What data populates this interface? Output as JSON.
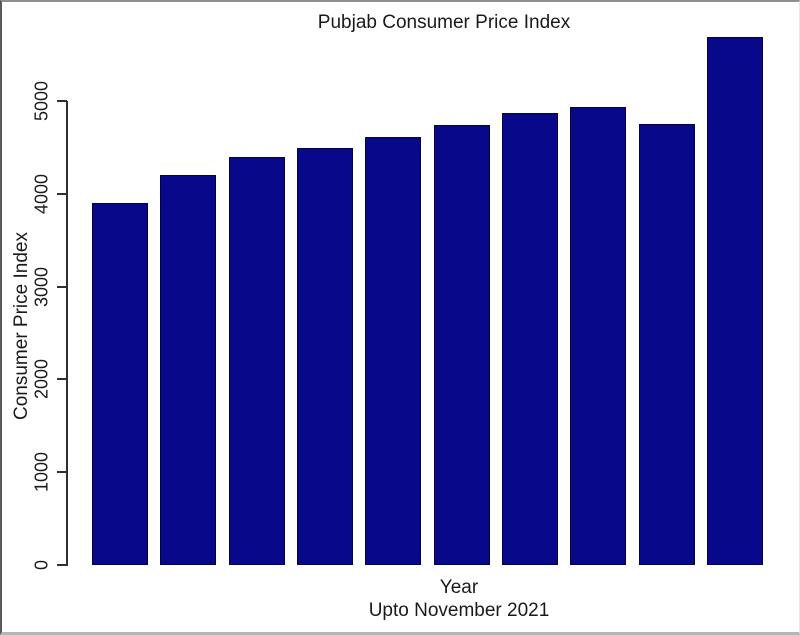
{
  "chart_data": {
    "type": "bar",
    "title": "Pubjab Consumer Price Index",
    "xlabel": "Year",
    "subtitle": "Upto November 2021",
    "ylabel": "Consumer Price Index",
    "values": [
      3900,
      4200,
      4400,
      4490,
      4610,
      4740,
      4870,
      4930,
      4750,
      5690
    ],
    "x_tick_labels": [],
    "y_ticks": [
      0,
      1000,
      2000,
      3000,
      4000,
      5000
    ],
    "ylim": [
      0,
      5690
    ],
    "grid": false,
    "legend": "none",
    "bar_color": "#08088a",
    "bar_border_color": "#04043f",
    "axis_color": "#2f2f2f",
    "text_color": "#1a1a1a",
    "background_color": "#ffffff",
    "frame_border_color": "#8f8f8f"
  }
}
